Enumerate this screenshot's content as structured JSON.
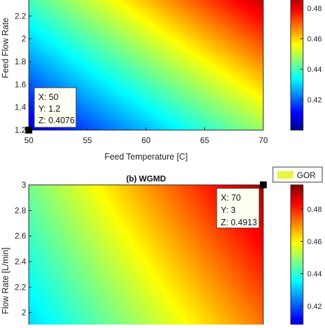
{
  "chart_data": [
    {
      "type": "heatmap",
      "panel": "",
      "title": "",
      "xlabel": "Feed Temperature [C]",
      "ylabel": "Feed Flow Rate",
      "xlim": [
        50,
        70
      ],
      "ylim": [
        1.2,
        2.4
      ],
      "x_ticks": [
        "50",
        "55",
        "60",
        "65",
        "70"
      ],
      "y_ticks": [
        "1.2",
        "1.4",
        "1.6",
        "1.8",
        "2",
        "2.2"
      ],
      "colorbar_ticks": [
        "0.42",
        "0.44",
        "0.46",
        "0.48"
      ],
      "clim": [
        0.4,
        0.49
      ],
      "z_min": 0.4076,
      "datatip": {
        "x_text": "X: 50",
        "y_text": "Y: 1.2",
        "z_text": "Z: 0.4076",
        "x": 50,
        "y": 1.2,
        "z": 0.4076
      }
    },
    {
      "type": "heatmap",
      "panel": "(b) WGMD",
      "title": "(b) WGMD",
      "xlabel": "",
      "ylabel": "Flow Rate [L/min]",
      "xlim": [
        50,
        70
      ],
      "ylim": [
        1.8,
        3.0
      ],
      "y_ticks": [
        "2",
        "2.2",
        "2.4",
        "2.6",
        "2.8",
        "3"
      ],
      "legend": [
        "GOR"
      ],
      "colorbar_ticks": [
        "0.42",
        "0.44",
        "0.46",
        "0.48"
      ],
      "clim": [
        0.4,
        0.495
      ],
      "z_max": 0.4913,
      "datatip": {
        "x_text": "X: 70",
        "y_text": "Y: 3",
        "z_text": "Z: 0.4913",
        "x": 70,
        "y": 3,
        "z": 0.4913
      }
    }
  ],
  "colors": {
    "jet_low": "#00008f",
    "jet_high": "#800000",
    "legend_patch": "#e8f542"
  }
}
